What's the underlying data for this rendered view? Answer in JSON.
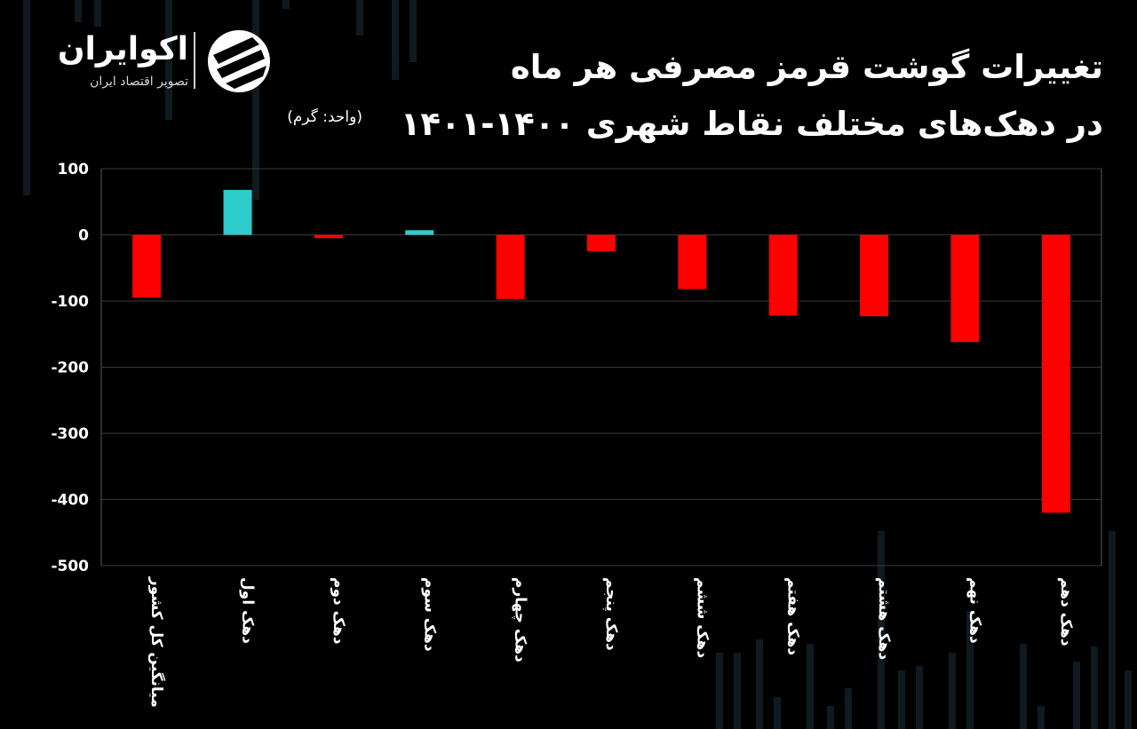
{
  "brand": {
    "name": "اکوایران",
    "tagline": "تصویر اقتصاد ایران"
  },
  "header": {
    "title_line1": "تغییرات گوشت قرمز مصرفی هر ماه",
    "title_line2": "در دهک‌های مختلف نقاط شهری ۱۴۰۰-۱۴۰۱",
    "unit": "(واحد: گرم)"
  },
  "colors": {
    "negative": "#ff0000",
    "positive": "#2ecccc",
    "background": "#000000",
    "gridline": "#3a3a3a",
    "plot_border": "#5a5a5a"
  },
  "chart_data": {
    "type": "bar",
    "title": "تغییرات گوشت قرمز مصرفی هر ماه در دهک‌های مختلف نقاط شهری ۱۴۰۰-۱۴۰۱",
    "xlabel": "",
    "ylabel": "",
    "categories": [
      "میانگین کل کشور",
      "دهک اول",
      "دهک دوم",
      "دهک سوم",
      "دهک چهارم",
      "دهک پنجم",
      "دهک ششم",
      "دهک هفتم",
      "دهک هشتم",
      "دهک نهم",
      "دهک دهم"
    ],
    "values": [
      -95,
      68,
      -5,
      7,
      -97,
      -25,
      -82,
      -122,
      -123,
      -162,
      -420
    ],
    "ylim": [
      -500,
      100
    ],
    "yticks": [
      100,
      0,
      -100,
      -200,
      -300,
      -400,
      -500
    ],
    "ytick_labels": [
      "100",
      "0",
      "-100",
      "-200",
      "-300",
      "-400",
      "-500"
    ],
    "grid": true,
    "legend": "none"
  }
}
